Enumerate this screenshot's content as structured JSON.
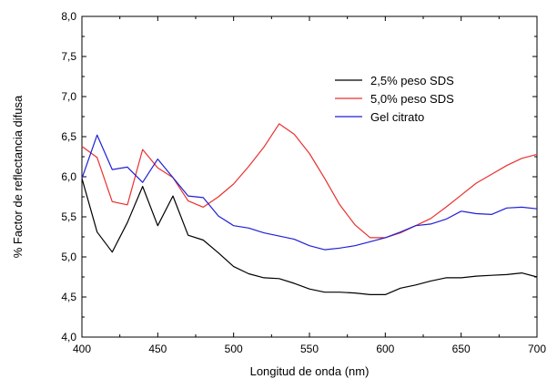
{
  "chart_data": {
    "type": "line",
    "xlabel": "Longitud de onda (nm)",
    "ylabel": "% Factor de reflectancia difusa",
    "xlim": [
      400,
      700
    ],
    "ylim": [
      4.0,
      8.0
    ],
    "x_ticks": [
      400,
      450,
      500,
      550,
      600,
      650,
      700
    ],
    "y_ticks": [
      4.0,
      4.5,
      5.0,
      5.5,
      6.0,
      6.5,
      7.0,
      7.5,
      8.0
    ],
    "x_tick_labels": [
      "400",
      "450",
      "500",
      "550",
      "600",
      "650",
      "700"
    ],
    "y_tick_labels": [
      "4,0",
      "4,5",
      "5,0",
      "5,5",
      "6,0",
      "6,5",
      "7,0",
      "7,5",
      "8,0"
    ],
    "grid": false,
    "legend_position": "top-right",
    "series": [
      {
        "name": "2,5% peso SDS",
        "color": "#000000",
        "x": [
          400,
          410,
          420,
          430,
          440,
          450,
          460,
          470,
          480,
          490,
          500,
          510,
          520,
          530,
          540,
          550,
          560,
          570,
          580,
          590,
          600,
          610,
          620,
          630,
          640,
          650,
          660,
          670,
          680,
          690,
          700
        ],
        "values": [
          5.98,
          5.31,
          5.06,
          5.43,
          5.88,
          5.39,
          5.76,
          5.27,
          5.21,
          5.05,
          4.88,
          4.79,
          4.74,
          4.73,
          4.67,
          4.6,
          4.56,
          4.56,
          4.55,
          4.53,
          4.53,
          4.61,
          4.65,
          4.7,
          4.74,
          4.74,
          4.76,
          4.77,
          4.78,
          4.8,
          4.75
        ]
      },
      {
        "name": "5,0% peso SDS",
        "color": "#e8312e",
        "x": [
          400,
          410,
          420,
          430,
          440,
          450,
          460,
          470,
          480,
          490,
          500,
          510,
          520,
          530,
          540,
          550,
          560,
          570,
          580,
          590,
          600,
          610,
          620,
          630,
          640,
          650,
          660,
          670,
          680,
          690,
          700
        ],
        "values": [
          6.38,
          6.24,
          5.69,
          5.65,
          6.34,
          6.11,
          5.99,
          5.7,
          5.62,
          5.75,
          5.91,
          6.13,
          6.37,
          6.66,
          6.53,
          6.29,
          5.98,
          5.65,
          5.4,
          5.24,
          5.24,
          5.3,
          5.39,
          5.48,
          5.62,
          5.77,
          5.92,
          6.03,
          6.14,
          6.23,
          6.28
        ]
      },
      {
        "name": "Gel citrato",
        "color": "#1f1fd6",
        "x": [
          400,
          410,
          420,
          430,
          440,
          450,
          460,
          470,
          480,
          490,
          500,
          510,
          520,
          530,
          540,
          550,
          560,
          570,
          580,
          590,
          600,
          610,
          620,
          630,
          640,
          650,
          660,
          670,
          680,
          690,
          700
        ],
        "values": [
          5.98,
          6.52,
          6.09,
          6.12,
          5.93,
          6.22,
          5.99,
          5.76,
          5.74,
          5.51,
          5.39,
          5.36,
          5.3,
          5.26,
          5.22,
          5.14,
          5.09,
          5.11,
          5.14,
          5.19,
          5.24,
          5.31,
          5.39,
          5.41,
          5.47,
          5.57,
          5.54,
          5.53,
          5.61,
          5.62,
          5.6
        ]
      }
    ]
  }
}
